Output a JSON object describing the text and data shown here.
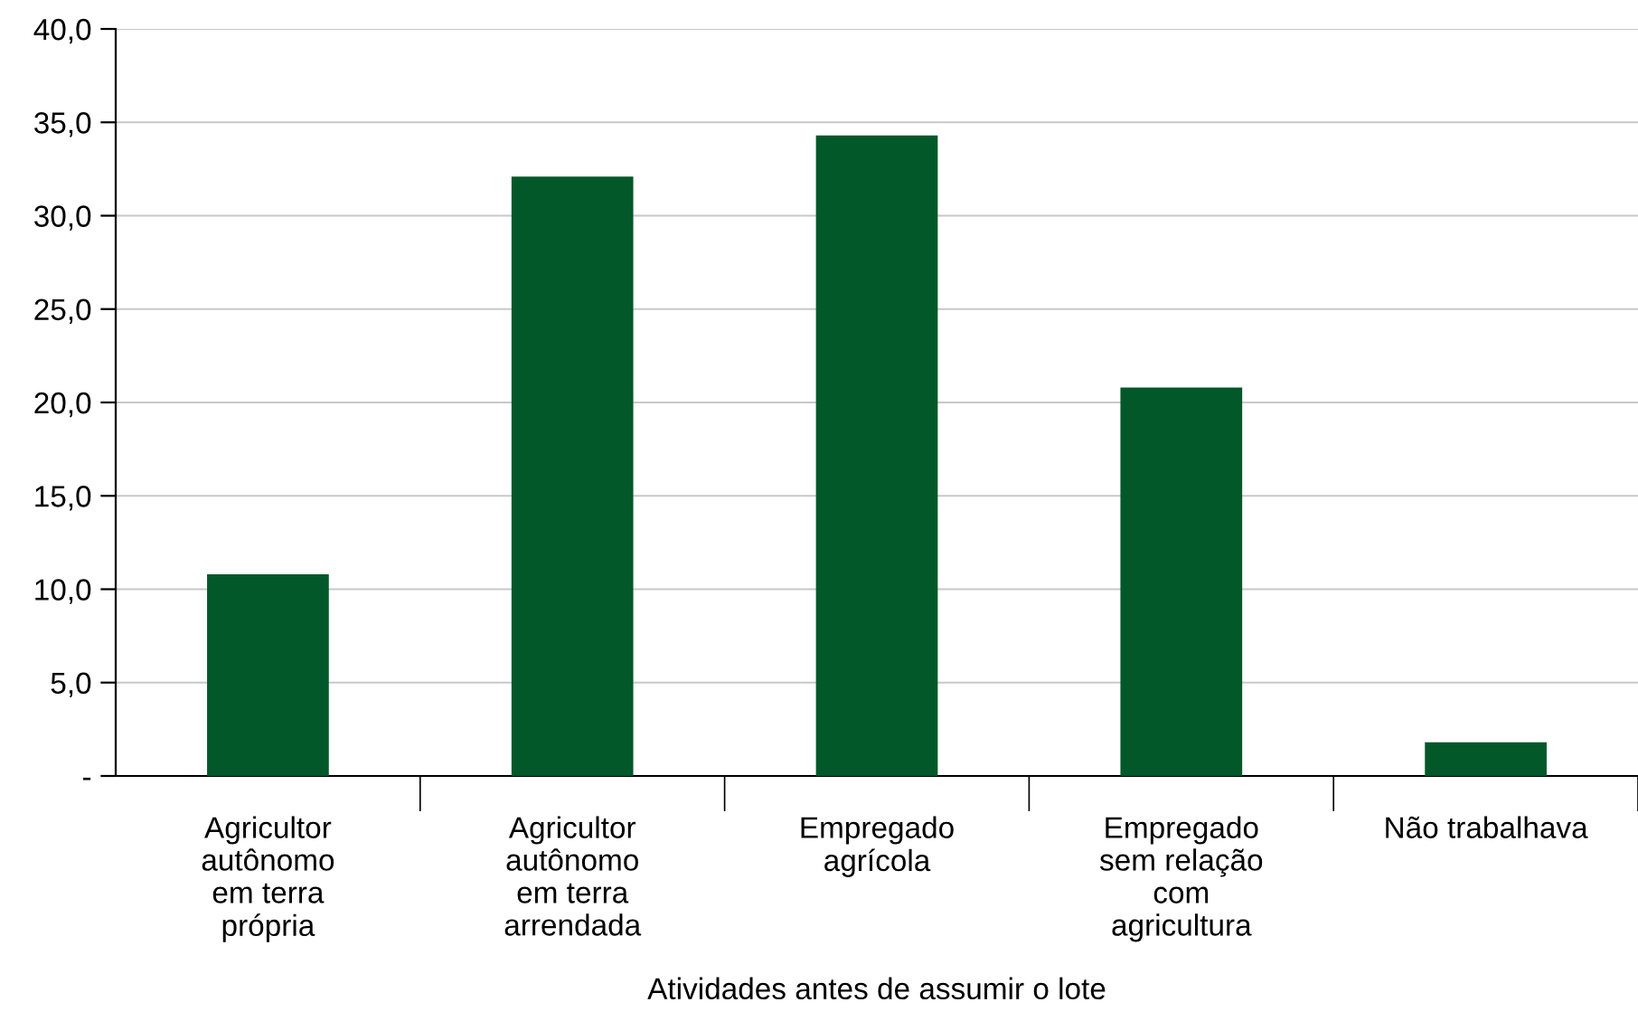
{
  "chart_data": {
    "type": "bar",
    "xlabel": "Atividades antes de assumir o lote",
    "categories": [
      "Agricultor\nautônomo\nem terra\nprópria",
      "Agricultor\nautônomo\nem terra\narrendada",
      "Empregado\nagrícola",
      "Empregado\nsem relação\ncom\nagricultura",
      "Não trabalhava"
    ],
    "values": [
      10.8,
      32.1,
      34.3,
      20.8,
      1.8
    ],
    "color": "#03582a",
    "ylim": [
      0,
      40
    ],
    "yticks": [
      {
        "value": 0,
        "label": "-"
      },
      {
        "value": 5,
        "label": "5,0"
      },
      {
        "value": 10,
        "label": "10,0"
      },
      {
        "value": 15,
        "label": "15,0"
      },
      {
        "value": 20,
        "label": "20,0"
      },
      {
        "value": 25,
        "label": "25,0"
      },
      {
        "value": 30,
        "label": "30,0"
      },
      {
        "value": 35,
        "label": "35,0"
      },
      {
        "value": 40,
        "label": "40,0"
      }
    ],
    "grid": "y"
  }
}
